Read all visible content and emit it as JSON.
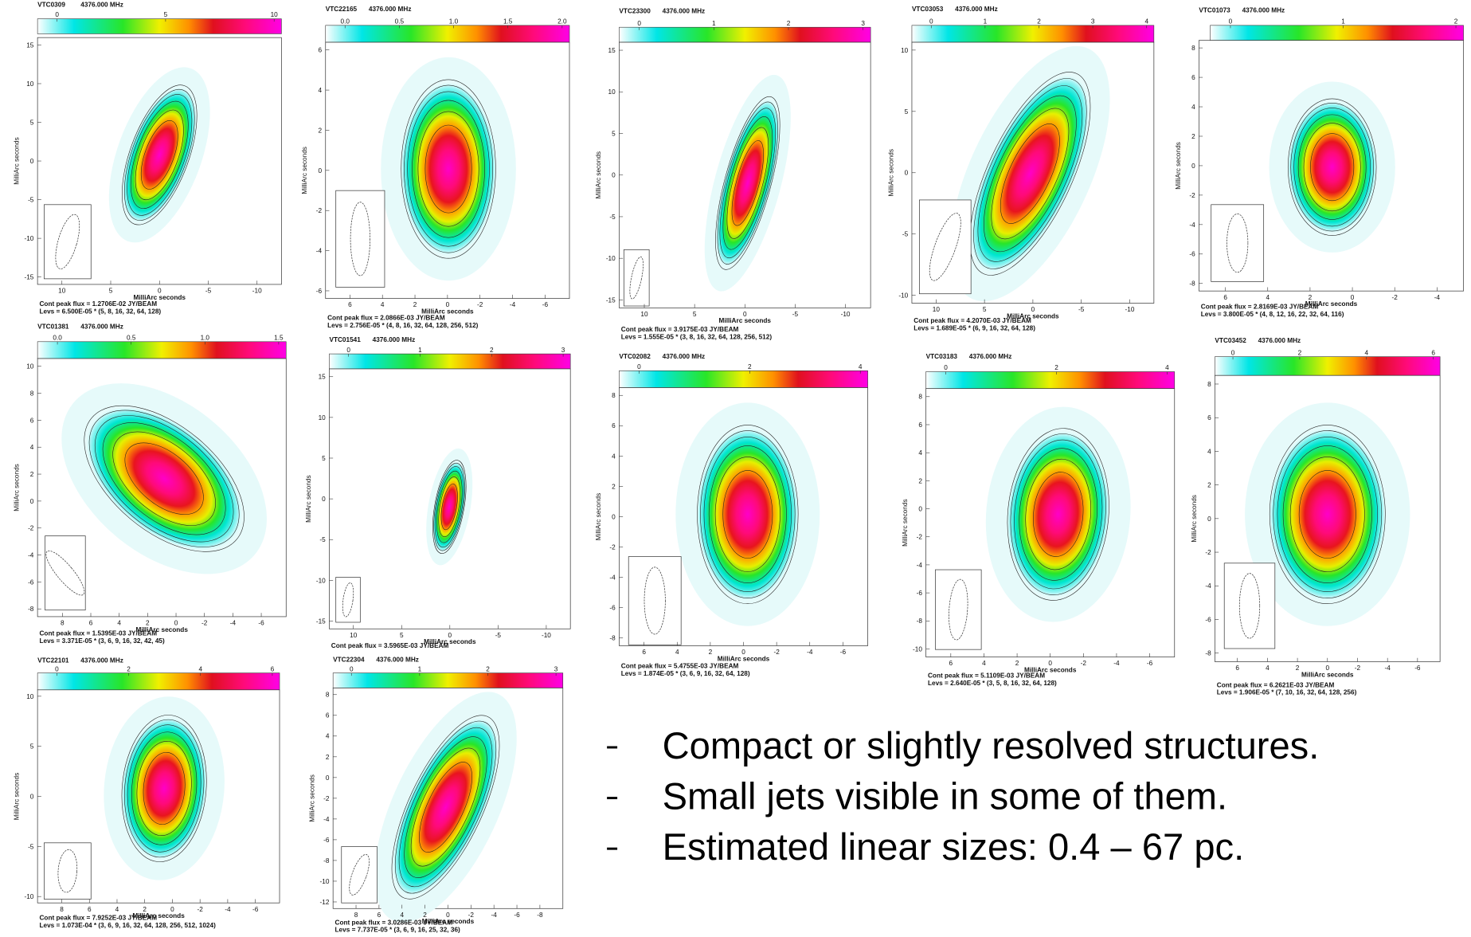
{
  "panels": [
    {
      "source": "VTC0309",
      "frequency": "4376.000 MHz",
      "colorbar_ticks": [
        "0",
        "5",
        "10"
      ],
      "y_ticks": [
        "15",
        "10",
        "5",
        "0",
        "-5",
        "-10",
        "-15"
      ],
      "x_ticks": [
        "10",
        "5",
        "0",
        "-5",
        "-10"
      ],
      "y_label": "MilliArc seconds",
      "x_label": "MilliArc seconds",
      "peak_flux": "Cont peak flux = 1.2706E-02 JY/BEAM",
      "levels": "Levs = 6.500E-05 * (5, 8, 16, 32, 64, 128)"
    },
    {
      "source": "VTC22165",
      "frequency": "4376.000 MHz",
      "colorbar_ticks": [
        "0.0",
        "0.5",
        "1.0",
        "1.5",
        "2.0"
      ],
      "y_ticks": [
        "6",
        "4",
        "2",
        "0",
        "-2",
        "-4",
        "-6"
      ],
      "x_ticks": [
        "6",
        "4",
        "2",
        "0",
        "-2",
        "-4",
        "-6"
      ],
      "y_label": "MilliArc seconds",
      "x_label": "MilliArc seconds",
      "peak_flux": "Cont peak flux = 2.0866E-03 JY/BEAM",
      "levels": "Levs = 2.756E-05 * (4, 8, 16, 32, 64, 128, 256, 512)"
    },
    {
      "source": "VTC23300",
      "frequency": "4376.000 MHz",
      "colorbar_ticks": [
        "0",
        "1",
        "2",
        "3"
      ],
      "y_ticks": [
        "15",
        "10",
        "5",
        "0",
        "-5",
        "-10",
        "-15"
      ],
      "x_ticks": [
        "10",
        "5",
        "0",
        "-5",
        "-10"
      ],
      "y_label": "MilliArc seconds",
      "x_label": "MilliArc seconds",
      "peak_flux": "Cont peak flux = 3.9175E-03 JY/BEAM",
      "levels": "Levs = 1.555E-05 * (3, 8, 16, 32, 64, 128, 256, 512)"
    },
    {
      "source": "VTC03053",
      "frequency": "4376.000 MHz",
      "colorbar_ticks": [
        "0",
        "1",
        "2",
        "3",
        "4"
      ],
      "y_ticks": [
        "10",
        "5",
        "0",
        "-5",
        "-10"
      ],
      "x_ticks": [
        "10",
        "5",
        "0",
        "-5",
        "-10"
      ],
      "y_label": "MilliArc seconds",
      "x_label": "MilliArc seconds",
      "peak_flux": "Cont peak flux = 4.2070E-03 JY/BEAM",
      "levels": "Levs = 1.689E-05 * (6, 9, 16, 32, 64, 128)"
    },
    {
      "source": "VTC01073",
      "frequency": "4376.000 MHz",
      "colorbar_ticks": [
        "0",
        "1",
        "2"
      ],
      "y_ticks": [
        "8",
        "6",
        "4",
        "2",
        "0",
        "-2",
        "-4",
        "-6",
        "-8"
      ],
      "x_ticks": [
        "6",
        "4",
        "2",
        "0",
        "-2",
        "-4"
      ],
      "y_label": "MilliArc seconds",
      "x_label": "MilliArc seconds",
      "peak_flux": "Cont peak flux = 2.8169E-03 JY/BEAM",
      "levels": "Levs = 3.800E-05 * (4, 8, 12, 16, 22, 32, 64, 116)"
    },
    {
      "source": "VTC01381",
      "frequency": "4376.000 MHz",
      "colorbar_ticks": [
        "0.0",
        "0.5",
        "1.0",
        "1.5"
      ],
      "y_ticks": [
        "10",
        "8",
        "6",
        "4",
        "2",
        "0",
        "-2",
        "-4",
        "-6",
        "-8"
      ],
      "x_ticks": [
        "8",
        "6",
        "4",
        "2",
        "0",
        "-2",
        "-4",
        "-6"
      ],
      "y_label": "MilliArc seconds",
      "x_label": "MilliArc seconds",
      "peak_flux": "Cont peak flux = 1.5395E-03 JY/BEAM",
      "levels": "Levs = 3.371E-05 * (3, 6, 9, 16, 32, 42, 45)"
    },
    {
      "source": "VTC01541",
      "frequency": "4376.000 MHz",
      "colorbar_ticks": [
        "0",
        "1",
        "2",
        "3"
      ],
      "y_ticks": [
        "15",
        "10",
        "5",
        "0",
        "-5",
        "-10",
        "-15"
      ],
      "x_ticks": [
        "10",
        "5",
        "0",
        "-5",
        "-10"
      ],
      "y_label": "MilliArc seconds",
      "x_label": "MilliArc seconds",
      "peak_flux": "Cont peak flux = 3.5965E-03 JY/BEAM"
    },
    {
      "source": "VTC02082",
      "frequency": "4376.000 MHz",
      "colorbar_ticks": [
        "0",
        "2",
        "4"
      ],
      "y_ticks": [
        "8",
        "6",
        "4",
        "2",
        "0",
        "-2",
        "-4",
        "-6",
        "-8"
      ],
      "x_ticks": [
        "6",
        "4",
        "2",
        "0",
        "-2",
        "-4",
        "-6"
      ],
      "y_label": "MilliArc seconds",
      "x_label": "MilliArc seconds",
      "peak_flux": "Cont peak flux = 5.4755E-03 JY/BEAM",
      "levels": "Levs = 1.874E-05 * (3, 6, 9, 16, 32, 64, 128)"
    },
    {
      "source": "VTC03183",
      "frequency": "4376.000 MHz",
      "colorbar_ticks": [
        "0",
        "2",
        "4"
      ],
      "y_ticks": [
        "8",
        "6",
        "4",
        "2",
        "0",
        "-2",
        "-4",
        "-6",
        "-8",
        "-10"
      ],
      "x_ticks": [
        "6",
        "4",
        "2",
        "0",
        "-2",
        "-4",
        "-6"
      ],
      "y_label": "MilliArc seconds",
      "x_label": "MilliArc seconds",
      "peak_flux": "Cont peak flux = 5.1109E-03 JY/BEAM",
      "levels": "Levs = 2.640E-05 * (3, 5, 8, 16, 32, 64, 128)"
    },
    {
      "source": "VTC03452",
      "frequency": "4376.000 MHz",
      "colorbar_ticks": [
        "0",
        "2",
        "4",
        "6"
      ],
      "y_ticks": [
        "8",
        "6",
        "4",
        "2",
        "0",
        "-2",
        "-4",
        "-6",
        "-8"
      ],
      "x_ticks": [
        "6",
        "4",
        "2",
        "0",
        "-2",
        "-4",
        "-6"
      ],
      "y_label": "MilliArc seconds",
      "x_label": "MilliArc seconds",
      "peak_flux": "Cont peak flux = 6.2621E-03 JY/BEAM",
      "levels": "Levs = 1.906E-05 * (7, 10, 16, 32, 64, 128, 256)"
    },
    {
      "source": "VTC22101",
      "frequency": "4376.000 MHz",
      "colorbar_ticks": [
        "0",
        "2",
        "4",
        "6"
      ],
      "y_ticks": [
        "10",
        "5",
        "0",
        "-5",
        "-10"
      ],
      "x_ticks": [
        "8",
        "6",
        "4",
        "2",
        "0",
        "-2",
        "-4",
        "-6"
      ],
      "y_label": "MilliArc seconds",
      "x_label": "MilliArc seconds",
      "peak_flux": "Cont peak flux = 7.9252E-03 JY/BEAM",
      "levels": "Levs = 1.073E-04 * (3, 6, 9, 16, 32, 64, 128, 256, 512, 1024)"
    },
    {
      "source": "VTC22304",
      "frequency": "4376.000 MHz",
      "colorbar_ticks": [
        "0",
        "1",
        "2",
        "3"
      ],
      "y_ticks": [
        "8",
        "6",
        "4",
        "2",
        "0",
        "-2",
        "-4",
        "-6",
        "-8",
        "-10",
        "-12"
      ],
      "x_ticks": [
        "8",
        "6",
        "4",
        "2",
        "0",
        "-2",
        "-4",
        "-6",
        "-8"
      ],
      "y_label": "MilliArc seconds",
      "x_label": "MilliArc seconds",
      "peak_flux": "Cont peak flux = 3.0286E-03 JY/BEAM",
      "levels": "Levs = 7.737E-05 * (3, 6, 9, 16, 25, 32, 36)"
    }
  ],
  "bullets": [
    "Compact or slightly resolved structures.",
    "Small jets visible in some of them.",
    "Estimated linear sizes: 0.4 – 67  pc."
  ]
}
